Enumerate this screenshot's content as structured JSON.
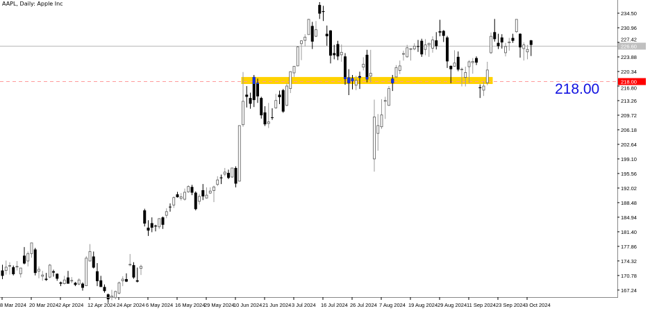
{
  "window": {
    "title": "AAPL, Daily:  Apple Inc"
  },
  "annotation_label": "218.00",
  "colors": {
    "bull_outline": "#555555",
    "bear_body": "#000000",
    "band": "#FFD200",
    "band_candle": "#1030E0",
    "level_line": "#FF9A9A",
    "level_label_bg": "#FF0000",
    "bid_line": "#B8B8B8",
    "bid_label_bg": "#C0C0C0"
  },
  "chart_data": {
    "type": "candlestick",
    "symbol": "AAPL",
    "timeframe": "Daily",
    "ylim": [
      164.0,
      237.5
    ],
    "y_ticks": [
      "234.50",
      "230.96",
      "227.42",
      "223.88",
      "220.34",
      "216.80",
      "213.26",
      "209.72",
      "206.18",
      "202.64",
      "199.10",
      "195.56",
      "192.02",
      "188.48",
      "184.94",
      "181.40",
      "177.86",
      "174.32",
      "170.78",
      "167.24"
    ],
    "x_ticks": [
      {
        "label": "8 Mar 2024",
        "date": "2024-03-08"
      },
      {
        "label": "20 Mar 2024",
        "date": "2024-03-20"
      },
      {
        "label": "2 Apr 2024",
        "date": "2024-04-02"
      },
      {
        "label": "12 Apr 2024",
        "date": "2024-04-12"
      },
      {
        "label": "24 Apr 2024",
        "date": "2024-04-24"
      },
      {
        "label": "6 May 2024",
        "date": "2024-05-06"
      },
      {
        "label": "16 May 2024",
        "date": "2024-05-16"
      },
      {
        "label": "29 May 2024",
        "date": "2024-05-29"
      },
      {
        "label": "10 Jun 2024",
        "date": "2024-06-10"
      },
      {
        "label": "21 Jun 2024",
        "date": "2024-06-21"
      },
      {
        "label": "3 Jul 2024",
        "date": "2024-07-03"
      },
      {
        "label": "16 Jul 2024",
        "date": "2024-07-16"
      },
      {
        "label": "26 Jul 2024",
        "date": "2024-07-26"
      },
      {
        "label": "7 Aug 2024",
        "date": "2024-08-07"
      },
      {
        "label": "19 Aug 2024",
        "date": "2024-08-19"
      },
      {
        "label": "29 Aug 2024",
        "date": "2024-08-29"
      },
      {
        "label": "11 Sep 2024",
        "date": "2024-09-11"
      },
      {
        "label": "23 Sep 2024",
        "date": "2024-09-23"
      },
      {
        "label": "3 Oct 2024",
        "date": "2024-10-03"
      }
    ],
    "level_line": {
      "price": 218.0,
      "label": "218.00",
      "style": "dashed"
    },
    "bid_line": {
      "price": 226.6,
      "label": "226.60"
    },
    "highlight_band": {
      "from_price": 217.3,
      "to_price": 219.0,
      "start_date": "2024-06-12",
      "end_date": "2024-09-19"
    },
    "columns": [
      "date",
      "open",
      "high",
      "low",
      "close"
    ],
    "candles": [
      [
        "2024-03-08",
        172.0,
        173.4,
        169.9,
        170.7
      ],
      [
        "2024-03-11",
        172.0,
        174.4,
        171.0,
        172.8
      ],
      [
        "2024-03-12",
        173.1,
        174.0,
        171.0,
        173.2
      ],
      [
        "2024-03-13",
        172.8,
        173.2,
        170.8,
        171.1
      ],
      [
        "2024-03-14",
        172.9,
        174.3,
        172.0,
        173.0
      ],
      [
        "2024-03-15",
        171.2,
        172.6,
        170.3,
        172.6
      ],
      [
        "2024-03-18",
        175.6,
        177.7,
        173.5,
        173.7
      ],
      [
        "2024-03-19",
        174.3,
        176.6,
        173.0,
        176.1
      ],
      [
        "2024-03-20",
        176.1,
        178.7,
        175.1,
        178.7
      ],
      [
        "2024-03-21",
        177.1,
        177.5,
        170.8,
        171.4
      ],
      [
        "2024-03-22",
        171.8,
        173.0,
        170.1,
        172.3
      ],
      [
        "2024-03-25",
        170.6,
        171.9,
        169.5,
        170.9
      ],
      [
        "2024-03-26",
        170.0,
        171.4,
        169.5,
        169.7
      ],
      [
        "2024-03-27",
        170.4,
        173.6,
        170.1,
        173.3
      ],
      [
        "2024-03-28",
        171.8,
        172.2,
        170.5,
        171.5
      ],
      [
        "2024-04-01",
        171.2,
        171.3,
        169.5,
        170.0
      ],
      [
        "2024-04-02",
        169.1,
        169.3,
        168.2,
        168.8
      ],
      [
        "2024-04-03",
        168.8,
        170.7,
        168.6,
        169.7
      ],
      [
        "2024-04-04",
        170.3,
        171.9,
        168.8,
        168.8
      ],
      [
        "2024-04-05",
        169.6,
        170.4,
        168.9,
        169.6
      ],
      [
        "2024-04-08",
        169.0,
        169.2,
        168.2,
        168.5
      ],
      [
        "2024-04-09",
        168.7,
        170.1,
        168.4,
        169.7
      ],
      [
        "2024-04-10",
        168.8,
        169.1,
        167.1,
        167.8
      ],
      [
        "2024-04-11",
        168.3,
        175.5,
        168.2,
        175.0
      ],
      [
        "2024-04-12",
        174.3,
        178.4,
        174.2,
        176.6
      ],
      [
        "2024-04-15",
        175.4,
        176.6,
        172.5,
        172.7
      ],
      [
        "2024-04-16",
        171.8,
        173.8,
        168.2,
        169.4
      ],
      [
        "2024-04-17",
        169.6,
        170.7,
        168.0,
        168.0
      ],
      [
        "2024-04-18",
        168.0,
        168.6,
        166.6,
        167.0
      ],
      [
        "2024-04-19",
        166.2,
        166.4,
        164.1,
        165.0
      ],
      [
        "2024-04-22",
        165.5,
        167.3,
        164.8,
        165.8
      ],
      [
        "2024-04-23",
        165.4,
        167.1,
        165.0,
        166.9
      ],
      [
        "2024-04-24",
        166.5,
        169.3,
        166.2,
        169.0
      ],
      [
        "2024-04-25",
        169.5,
        170.6,
        168.2,
        169.9
      ],
      [
        "2024-04-26",
        169.9,
        171.3,
        169.2,
        169.3
      ],
      [
        "2024-04-29",
        173.4,
        176.0,
        173.0,
        173.5
      ],
      [
        "2024-04-30",
        173.3,
        174.0,
        170.0,
        170.3
      ],
      [
        "2024-05-01",
        169.6,
        172.7,
        169.1,
        169.3
      ],
      [
        "2024-05-02",
        172.5,
        173.4,
        170.9,
        173.0
      ],
      [
        "2024-05-03",
        186.6,
        187.0,
        182.7,
        183.4
      ],
      [
        "2024-05-06",
        182.4,
        184.2,
        180.4,
        181.7
      ],
      [
        "2024-05-07",
        183.5,
        184.9,
        181.3,
        182.4
      ],
      [
        "2024-05-08",
        182.9,
        183.1,
        181.5,
        182.7
      ],
      [
        "2024-05-09",
        182.6,
        184.7,
        182.1,
        184.6
      ],
      [
        "2024-05-10",
        184.9,
        185.1,
        182.1,
        183.1
      ],
      [
        "2024-05-13",
        185.4,
        187.1,
        184.7,
        186.3
      ],
      [
        "2024-05-14",
        187.5,
        188.3,
        186.3,
        187.4
      ],
      [
        "2024-05-15",
        187.9,
        190.0,
        187.2,
        189.7
      ],
      [
        "2024-05-16",
        190.5,
        191.1,
        189.7,
        189.8
      ],
      [
        "2024-05-17",
        189.5,
        190.8,
        189.0,
        189.9
      ],
      [
        "2024-05-20",
        189.3,
        191.9,
        189.0,
        191.0
      ],
      [
        "2024-05-21",
        191.1,
        192.7,
        190.9,
        192.4
      ],
      [
        "2024-05-22",
        192.3,
        192.8,
        190.3,
        190.9
      ],
      [
        "2024-05-23",
        190.9,
        191.2,
        186.6,
        186.9
      ],
      [
        "2024-05-24",
        188.8,
        190.6,
        188.0,
        190.0
      ],
      [
        "2024-05-28",
        191.5,
        193.0,
        189.1,
        190.0
      ],
      [
        "2024-05-29",
        189.6,
        192.2,
        189.5,
        190.3
      ],
      [
        "2024-05-30",
        190.8,
        192.2,
        190.6,
        191.3
      ],
      [
        "2024-05-31",
        191.4,
        192.6,
        188.6,
        192.3
      ],
      [
        "2024-06-03",
        192.9,
        194.9,
        192.5,
        194.0
      ],
      [
        "2024-06-04",
        194.6,
        195.3,
        193.0,
        194.4
      ],
      [
        "2024-06-05",
        195.4,
        196.9,
        194.9,
        195.9
      ],
      [
        "2024-06-06",
        195.7,
        196.5,
        194.2,
        194.5
      ],
      [
        "2024-06-07",
        194.7,
        196.9,
        194.5,
        196.9
      ],
      [
        "2024-06-10",
        196.9,
        197.3,
        192.2,
        193.1
      ],
      [
        "2024-06-11",
        193.7,
        207.2,
        193.6,
        207.2
      ],
      [
        "2024-06-12",
        207.4,
        220.2,
        206.9,
        213.1
      ],
      [
        "2024-06-13",
        214.7,
        216.8,
        211.6,
        214.2
      ],
      [
        "2024-06-14",
        213.9,
        215.2,
        211.3,
        212.5
      ],
      [
        "2024-06-17",
        219.0,
        219.5,
        211.7,
        213.4
      ],
      [
        "2024-06-18",
        217.6,
        218.6,
        212.7,
        214.3
      ],
      [
        "2024-06-20",
        213.9,
        214.2,
        208.9,
        209.7
      ],
      [
        "2024-06-21",
        210.4,
        211.9,
        207.1,
        207.5
      ],
      [
        "2024-06-24",
        207.7,
        212.7,
        206.6,
        208.1
      ],
      [
        "2024-06-25",
        209.2,
        211.4,
        208.6,
        209.1
      ],
      [
        "2024-06-26",
        211.5,
        214.9,
        211.3,
        213.3
      ],
      [
        "2024-06-27",
        214.7,
        215.7,
        212.4,
        214.1
      ],
      [
        "2024-06-28",
        215.8,
        216.1,
        210.3,
        210.6
      ],
      [
        "2024-07-01",
        212.1,
        217.5,
        211.9,
        216.8
      ],
      [
        "2024-07-02",
        216.2,
        220.4,
        215.1,
        220.3
      ],
      [
        "2024-07-03",
        220.0,
        221.6,
        219.0,
        221.6
      ],
      [
        "2024-07-05",
        221.7,
        226.5,
        221.6,
        226.3
      ],
      [
        "2024-07-08",
        227.1,
        227.9,
        223.1,
        227.8
      ],
      [
        "2024-07-09",
        227.9,
        229.4,
        226.4,
        228.7
      ],
      [
        "2024-07-10",
        229.3,
        233.1,
        229.3,
        233.0
      ],
      [
        "2024-07-11",
        231.4,
        232.4,
        225.8,
        227.6
      ],
      [
        "2024-07-12",
        228.9,
        232.6,
        228.7,
        230.5
      ],
      [
        "2024-07-15",
        236.5,
        237.2,
        233.1,
        234.4
      ],
      [
        "2024-07-16",
        235.0,
        236.3,
        232.6,
        234.8
      ],
      [
        "2024-07-17",
        229.5,
        231.5,
        226.6,
        228.9
      ],
      [
        "2024-07-18",
        230.3,
        230.4,
        222.3,
        224.2
      ],
      [
        "2024-07-19",
        224.8,
        226.8,
        223.3,
        224.3
      ],
      [
        "2024-07-22",
        227.0,
        227.8,
        223.1,
        224.0
      ],
      [
        "2024-07-23",
        224.4,
        226.9,
        222.7,
        225.0
      ],
      [
        "2024-07-24",
        224.0,
        224.8,
        217.1,
        218.5
      ],
      [
        "2024-07-25",
        218.9,
        220.9,
        214.6,
        217.5
      ],
      [
        "2024-07-26",
        218.7,
        219.5,
        216.0,
        218.0
      ],
      [
        "2024-07-29",
        217.0,
        219.3,
        215.8,
        218.2
      ],
      [
        "2024-07-30",
        219.2,
        220.3,
        216.1,
        218.8
      ],
      [
        "2024-07-31",
        221.4,
        223.8,
        220.6,
        222.1
      ],
      [
        "2024-08-01",
        224.4,
        225.6,
        217.7,
        218.4
      ],
      [
        "2024-08-02",
        219.2,
        225.6,
        217.7,
        219.9
      ],
      [
        "2024-08-05",
        199.1,
        213.5,
        196.0,
        209.3
      ],
      [
        "2024-08-06",
        205.3,
        210.0,
        201.1,
        207.2
      ],
      [
        "2024-08-07",
        206.9,
        213.6,
        206.4,
        209.8
      ],
      [
        "2024-08-08",
        213.1,
        214.2,
        208.8,
        213.3
      ],
      [
        "2024-08-09",
        212.1,
        216.8,
        212.0,
        216.2
      ],
      [
        "2024-08-12",
        218.6,
        219.5,
        215.6,
        217.5
      ],
      [
        "2024-08-13",
        219.0,
        221.9,
        219.0,
        221.3
      ],
      [
        "2024-08-14",
        220.6,
        223.0,
        219.7,
        221.7
      ],
      [
        "2024-08-15",
        224.6,
        225.4,
        223.0,
        224.7
      ],
      [
        "2024-08-16",
        223.9,
        226.8,
        223.7,
        226.1
      ],
      [
        "2024-08-19",
        225.7,
        226.0,
        223.0,
        225.9
      ],
      [
        "2024-08-20",
        225.8,
        227.2,
        225.5,
        226.5
      ],
      [
        "2024-08-21",
        226.5,
        228.0,
        225.1,
        226.4
      ],
      [
        "2024-08-22",
        227.8,
        228.3,
        223.9,
        224.5
      ],
      [
        "2024-08-23",
        225.7,
        228.2,
        224.3,
        226.8
      ],
      [
        "2024-08-26",
        226.8,
        227.3,
        223.9,
        227.2
      ],
      [
        "2024-08-27",
        226.0,
        228.9,
        224.9,
        228.0
      ],
      [
        "2024-08-28",
        227.9,
        229.9,
        225.7,
        226.5
      ],
      [
        "2024-08-29",
        230.1,
        232.9,
        228.9,
        229.8
      ],
      [
        "2024-08-30",
        230.2,
        230.4,
        227.5,
        229.0
      ],
      [
        "2024-09-03",
        228.6,
        229.0,
        221.2,
        222.8
      ],
      [
        "2024-09-04",
        221.7,
        221.8,
        217.5,
        220.9
      ],
      [
        "2024-09-05",
        221.6,
        225.5,
        221.5,
        222.4
      ],
      [
        "2024-09-06",
        223.9,
        225.2,
        220.4,
        220.8
      ],
      [
        "2024-09-09",
        220.8,
        221.3,
        216.7,
        220.9
      ],
      [
        "2024-09-10",
        218.9,
        221.5,
        216.7,
        220.1
      ],
      [
        "2024-09-11",
        221.5,
        223.1,
        217.5,
        222.7
      ],
      [
        "2024-09-12",
        222.5,
        223.6,
        219.8,
        222.8
      ],
      [
        "2024-09-13",
        223.6,
        224.0,
        221.9,
        222.5
      ],
      [
        "2024-09-16",
        216.5,
        217.2,
        213.9,
        216.3
      ],
      [
        "2024-09-17",
        215.8,
        217.9,
        214.4,
        216.8
      ],
      [
        "2024-09-18",
        217.6,
        222.7,
        217.0,
        220.7
      ],
      [
        "2024-09-19",
        224.9,
        229.8,
        224.6,
        228.9
      ],
      [
        "2024-09-20",
        229.9,
        233.1,
        227.6,
        228.2
      ],
      [
        "2024-09-23",
        227.3,
        229.5,
        225.8,
        226.5
      ],
      [
        "2024-09-24",
        228.6,
        229.4,
        225.9,
        227.4
      ],
      [
        "2024-09-25",
        224.9,
        227.3,
        224.0,
        226.4
      ],
      [
        "2024-09-26",
        227.3,
        228.5,
        225.4,
        227.5
      ],
      [
        "2024-09-27",
        228.5,
        229.5,
        227.3,
        227.8
      ],
      [
        "2024-09-30",
        230.0,
        233.0,
        229.7,
        233.0
      ],
      [
        "2024-10-01",
        229.5,
        229.6,
        223.7,
        226.2
      ],
      [
        "2024-10-02",
        225.9,
        227.4,
        223.0,
        226.8
      ],
      [
        "2024-10-03",
        225.1,
        226.8,
        223.3,
        225.7
      ],
      [
        "2024-10-04",
        227.9,
        228.0,
        224.1,
        226.8
      ]
    ]
  }
}
